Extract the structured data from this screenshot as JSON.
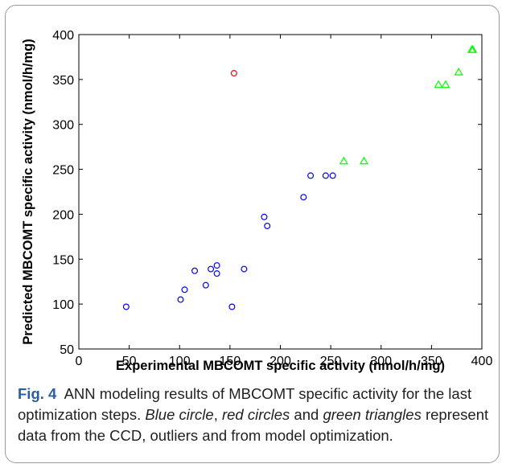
{
  "figure": {
    "caption": {
      "label": "Fig. 4",
      "text_1": "ANN modeling results of MBCOMT specific activity for the last optimization steps. ",
      "em_1": "Blue circle",
      "text_2": ", ",
      "em_2": "red circles",
      "text_3": " and ",
      "em_3": "green triangles",
      "text_4": " represent data from the CCD, outliers and from model optimization."
    }
  },
  "chart_data": {
    "type": "scatter",
    "xlabel": "Experimental MBCOMT specific activity (nmol/h/mg)",
    "ylabel": "Predicted MBCOMT specific activity (nmol/h/mg)",
    "xlim": [
      0,
      400
    ],
    "ylim": [
      50,
      400
    ],
    "xticks": [
      0,
      50,
      100,
      150,
      200,
      250,
      300,
      350,
      400
    ],
    "yticks": [
      50,
      100,
      150,
      200,
      250,
      300,
      350,
      400
    ],
    "grid": false,
    "series": [
      {
        "marker": "circle",
        "color": "#0000ff",
        "points": [
          [
            47,
            97
          ],
          [
            101,
            105
          ],
          [
            105,
            116
          ],
          [
            115,
            137
          ],
          [
            126,
            121
          ],
          [
            131,
            139
          ],
          [
            137,
            143
          ],
          [
            137,
            134
          ],
          [
            152,
            97
          ],
          [
            164,
            139
          ],
          [
            184,
            197
          ],
          [
            187,
            187
          ],
          [
            223,
            219
          ],
          [
            230,
            243
          ],
          [
            245,
            243
          ],
          [
            252,
            243
          ]
        ]
      },
      {
        "marker": "circle",
        "color": "#ff0000",
        "points": [
          [
            154,
            357
          ]
        ]
      },
      {
        "marker": "triangle",
        "color": "#00ff00",
        "points": [
          [
            263,
            259
          ],
          [
            283,
            259
          ],
          [
            357,
            344
          ],
          [
            364,
            344
          ],
          [
            377,
            358
          ],
          [
            390,
            383
          ],
          [
            391,
            383
          ]
        ]
      }
    ]
  }
}
